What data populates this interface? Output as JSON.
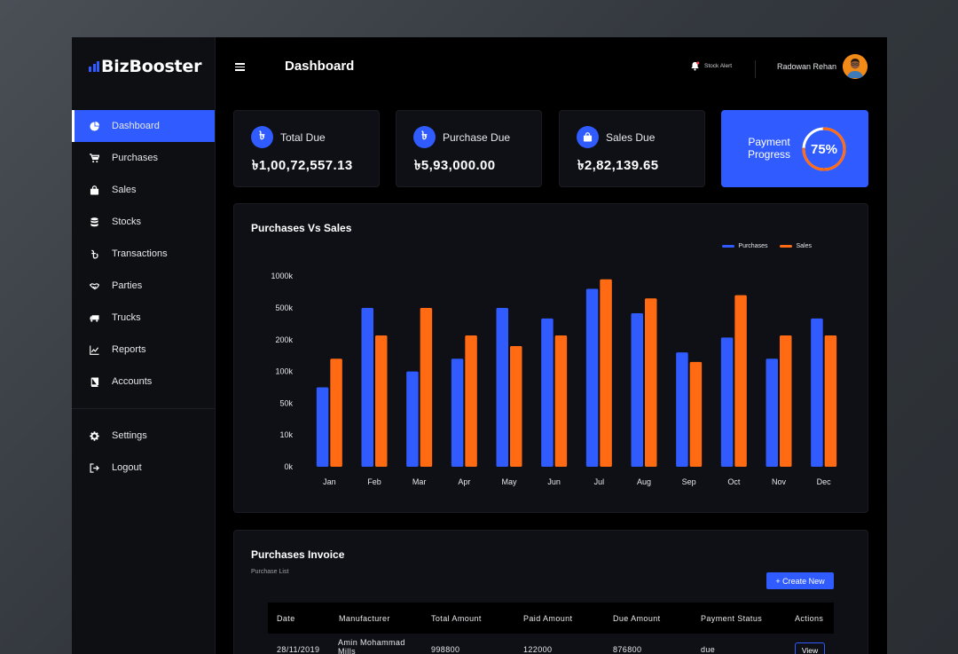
{
  "brand": {
    "name": "BizBooster"
  },
  "sidebar": {
    "items": [
      {
        "label": "Dashboard",
        "icon": "pie-chart-icon",
        "active": true
      },
      {
        "label": "Purchases",
        "icon": "cart-icon"
      },
      {
        "label": "Sales",
        "icon": "shopping-bag-icon"
      },
      {
        "label": "Stocks",
        "icon": "database-icon"
      },
      {
        "label": "Transactions",
        "icon": "taka-icon"
      },
      {
        "label": "Parties",
        "icon": "handshake-icon"
      },
      {
        "label": "Trucks",
        "icon": "truck-icon"
      },
      {
        "label": "Reports",
        "icon": "line-chart-icon"
      },
      {
        "label": "Accounts",
        "icon": "book-icon"
      }
    ],
    "bottom_items": [
      {
        "label": "Settings",
        "icon": "gear-icon"
      },
      {
        "label": "Logout",
        "icon": "logout-icon"
      }
    ]
  },
  "header": {
    "title": "Dashboard",
    "stock_alert": "Stock Alert",
    "user_name": "Radowan Rehan"
  },
  "cards": [
    {
      "label": "Total Due",
      "value": "৳1,00,72,557.13"
    },
    {
      "label": "Purchase Due",
      "value": "৳5,93,000.00"
    },
    {
      "label": "Sales Due",
      "value": "৳2,82,139.65"
    }
  ],
  "progress": {
    "label": "Payment Progress",
    "value": 0.75,
    "text": "75%"
  },
  "colors": {
    "accent": "#2f5bff",
    "sales": "#ff6a13",
    "purchases": "#2f5bff"
  },
  "chart_title": "Purchases Vs Sales",
  "chart_data": {
    "type": "bar",
    "title": "Purchases Vs Sales",
    "categories": [
      "Jan",
      "Feb",
      "Mar",
      "Apr",
      "May",
      "Jun",
      "Jul",
      "Aug",
      "Sep",
      "Oct",
      "Nov",
      "Dec"
    ],
    "y_ticks": [
      "0k",
      "10k",
      "50k",
      "100k",
      "200k",
      "500k",
      "1000k"
    ],
    "y_scale": "categorical ticks (non-linear)",
    "legend_position": "top-right",
    "series": [
      {
        "name": "Purchases",
        "color": "#2f5bff",
        "values": [
          75,
          500,
          100,
          140,
          500,
          400,
          800,
          450,
          160,
          220,
          140,
          400
        ]
      },
      {
        "name": "Sales",
        "color": "#ff6a13",
        "values": [
          140,
          240,
          500,
          240,
          180,
          240,
          950,
          650,
          130,
          700,
          240,
          240
        ]
      }
    ],
    "grid": false
  },
  "invoice": {
    "title": "Purchases Invoice",
    "subtitle": "Purchase List",
    "create_label": "+ Create New",
    "columns": [
      "Date",
      "Manufacturer",
      "Total Amount",
      "Paid Amount",
      "Due Amount",
      "Payment Status",
      "Actions"
    ],
    "rows": [
      {
        "date": "28/11/2019",
        "manufacturer": "Amin Mohammad Mills",
        "total": "998800",
        "paid": "122000",
        "due": "876800",
        "status": "due",
        "action": "View"
      }
    ]
  }
}
